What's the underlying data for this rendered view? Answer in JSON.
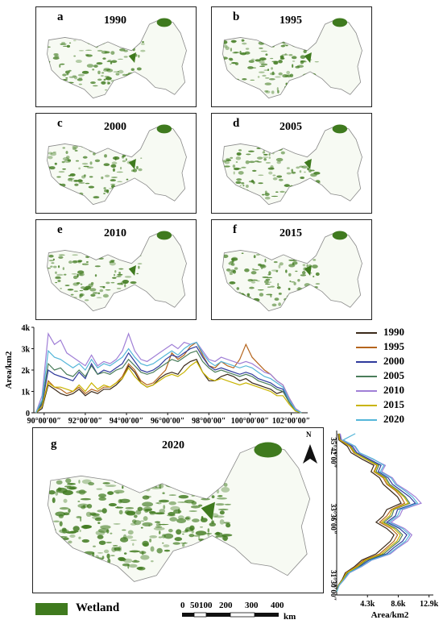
{
  "panels": [
    {
      "letter": "a",
      "year": "1990"
    },
    {
      "letter": "b",
      "year": "1995"
    },
    {
      "letter": "c",
      "year": "2000"
    },
    {
      "letter": "d",
      "year": "2005"
    },
    {
      "letter": "e",
      "year": "2010"
    },
    {
      "letter": "f",
      "year": "2015"
    },
    {
      "letter": "g",
      "year": "2020"
    }
  ],
  "north_label": "N",
  "wetland_legend": {
    "label": "Wetland",
    "color": "#3f7a1e"
  },
  "scale_bar": {
    "ticks": [
      "0",
      "50100",
      "200",
      "300",
      "400"
    ],
    "unit": "km"
  },
  "colors": {
    "wetland": "#3f7a1e",
    "region_fill": "#f7faf3",
    "outline": "#8a8a8a"
  },
  "chart_data": [
    {
      "type": "line",
      "orientation": "horizontal",
      "ylabel": "Area/km2",
      "ytick_labels": [
        "0",
        "1k",
        "2k",
        "3k",
        "4k"
      ],
      "ylim": [
        0,
        4000
      ],
      "xlim": [
        89.5,
        102.8
      ],
      "xtick_labels": [
        "90°00′00″",
        "92°00′00″",
        "94°00′00″",
        "96°00′00″",
        "98°00′00″",
        "100°00′00″",
        "102°00′00″"
      ],
      "xtick_values": [
        90,
        92,
        94,
        96,
        98,
        100,
        102
      ],
      "x": [
        89.6,
        89.9,
        90.2,
        90.5,
        90.8,
        91.1,
        91.4,
        91.7,
        92.0,
        92.3,
        92.6,
        92.9,
        93.2,
        93.5,
        93.8,
        94.1,
        94.4,
        94.7,
        95.0,
        95.3,
        95.6,
        95.9,
        96.2,
        96.5,
        96.8,
        97.1,
        97.4,
        97.7,
        98.0,
        98.3,
        98.6,
        98.9,
        99.2,
        99.5,
        99.8,
        100.1,
        100.4,
        100.7,
        101.0,
        101.3,
        101.6,
        101.9,
        102.2,
        102.5
      ],
      "series": [
        {
          "name": "1990",
          "color": "#3b2a1a",
          "values": [
            0,
            200,
            1300,
            1100,
            900,
            800,
            900,
            1100,
            800,
            1000,
            900,
            1100,
            1100,
            1300,
            1600,
            2200,
            1900,
            1400,
            1200,
            1300,
            1600,
            1800,
            1900,
            1800,
            2200,
            2400,
            2500,
            1900,
            1500,
            1500,
            1700,
            1800,
            1700,
            1500,
            1600,
            1400,
            1300,
            1200,
            1100,
            900,
            1000,
            500,
            100,
            0
          ]
        },
        {
          "name": "1995",
          "color": "#b5651d",
          "values": [
            0,
            300,
            1500,
            1200,
            1100,
            900,
            1000,
            1200,
            900,
            1100,
            1000,
            1200,
            1200,
            1400,
            1700,
            2300,
            2000,
            1500,
            1300,
            1400,
            1700,
            2000,
            2800,
            2500,
            2700,
            3100,
            3300,
            2700,
            2200,
            2100,
            2400,
            2200,
            2100,
            2500,
            3200,
            2600,
            2300,
            2000,
            1800,
            1500,
            1300,
            700,
            200,
            0
          ]
        },
        {
          "name": "2000",
          "color": "#2f3a9c",
          "values": [
            0,
            400,
            2000,
            1800,
            1700,
            1600,
            1500,
            1900,
            1600,
            2300,
            1800,
            2000,
            1900,
            2100,
            2300,
            2800,
            2400,
            2000,
            1900,
            2000,
            2200,
            2500,
            2700,
            2600,
            2800,
            3000,
            3100,
            2600,
            2200,
            2000,
            2100,
            2000,
            1900,
            1800,
            1900,
            1800,
            1600,
            1500,
            1400,
            1200,
            1100,
            600,
            150,
            0
          ]
        },
        {
          "name": "2005",
          "color": "#4a7d5a",
          "values": [
            0,
            500,
            2300,
            2000,
            2100,
            1800,
            1700,
            2000,
            1700,
            2200,
            1800,
            1900,
            1800,
            2000,
            2100,
            2500,
            2200,
            1900,
            1800,
            1900,
            2100,
            2300,
            2500,
            2400,
            2600,
            2800,
            2900,
            2400,
            2100,
            1900,
            2000,
            1900,
            1800,
            1700,
            1800,
            1700,
            1500,
            1400,
            1300,
            1100,
            1000,
            500,
            100,
            0
          ]
        },
        {
          "name": "2010",
          "color": "#a07fd6",
          "values": [
            0,
            800,
            3700,
            3200,
            3400,
            2800,
            2600,
            2400,
            2200,
            2700,
            2200,
            2400,
            2300,
            2500,
            2900,
            3700,
            2900,
            2500,
            2400,
            2600,
            2800,
            3000,
            3200,
            3000,
            3300,
            3200,
            3300,
            2900,
            2500,
            2400,
            2600,
            2500,
            2400,
            2300,
            2400,
            2300,
            2100,
            1900,
            1800,
            1500,
            1300,
            700,
            200,
            0
          ]
        },
        {
          "name": "2015",
          "color": "#c9b400",
          "values": [
            0,
            300,
            1400,
            1200,
            1200,
            1100,
            1000,
            1300,
            1000,
            1400,
            1100,
            1300,
            1200,
            1400,
            1600,
            2100,
            1700,
            1400,
            1200,
            1300,
            1500,
            1700,
            1800,
            1700,
            1900,
            2200,
            2400,
            1900,
            1600,
            1500,
            1600,
            1500,
            1400,
            1300,
            1400,
            1300,
            1200,
            1100,
            1000,
            800,
            800,
            400,
            80,
            0
          ]
        },
        {
          "name": "2020",
          "color": "#55b6d9",
          "values": [
            0,
            600,
            2900,
            2600,
            2500,
            2300,
            2100,
            2300,
            2000,
            2500,
            2100,
            2300,
            2200,
            2400,
            2600,
            3000,
            2600,
            2300,
            2200,
            2300,
            2500,
            2700,
            2900,
            2700,
            3000,
            3200,
            3300,
            2800,
            2400,
            2200,
            2400,
            2300,
            2200,
            2100,
            2200,
            2100,
            1900,
            1700,
            1600,
            1400,
            1200,
            600,
            150,
            0
          ]
        }
      ]
    },
    {
      "type": "line",
      "orientation": "vertical",
      "xlabel": "Area/km2",
      "xtick_labels": [
        "4.3k",
        "8.6k",
        "12.9k"
      ],
      "xtick_values": [
        4300,
        8600,
        12900
      ],
      "xlim": [
        0,
        13500
      ],
      "ylim": [
        31.2,
        36.4
      ],
      "ytick_labels": [
        "35°42′00″",
        "33°36′00″",
        "31°30′00″"
      ],
      "ytick_values": [
        35.7,
        33.6,
        31.5
      ],
      "y": [
        36.3,
        36.1,
        35.9,
        35.7,
        35.5,
        35.3,
        35.1,
        34.9,
        34.7,
        34.5,
        34.3,
        34.1,
        33.9,
        33.7,
        33.5,
        33.3,
        33.1,
        32.9,
        32.7,
        32.5,
        32.3,
        32.1,
        31.9,
        31.7,
        31.5,
        31.3
      ],
      "series": [
        {
          "name": "1990",
          "color": "#3b2a1a",
          "values": [
            200,
            300,
            1500,
            2000,
            3500,
            5200,
            4800,
            6000,
            6500,
            7500,
            8500,
            9000,
            7000,
            6500,
            5500,
            7000,
            8000,
            7500,
            6500,
            5500,
            3500,
            2500,
            1200,
            800,
            200,
            0
          ]
        },
        {
          "name": "1995",
          "color": "#b5651d",
          "values": [
            300,
            400,
            1800,
            2400,
            4000,
            5600,
            5200,
            6500,
            7000,
            8200,
            9000,
            9500,
            7600,
            7000,
            6000,
            7600,
            8500,
            8000,
            7000,
            6000,
            3800,
            2700,
            1300,
            900,
            250,
            0
          ]
        },
        {
          "name": "2000",
          "color": "#2f3a9c",
          "values": [
            400,
            600,
            2200,
            2800,
            4500,
            6200,
            5800,
            7200,
            7800,
            9000,
            10200,
            11000,
            8500,
            8200,
            7000,
            8800,
            9800,
            9200,
            8000,
            7000,
            4500,
            3200,
            1600,
            1000,
            300,
            0
          ]
        },
        {
          "name": "2005",
          "color": "#4a7d5a",
          "values": [
            350,
            500,
            2000,
            2600,
            4200,
            5900,
            5500,
            6900,
            7400,
            8600,
            9600,
            10200,
            8000,
            7700,
            6600,
            8300,
            9200,
            8700,
            7600,
            6600,
            4200,
            3000,
            1500,
            950,
            280,
            0
          ]
        },
        {
          "name": "2010",
          "color": "#a07fd6",
          "values": [
            500,
            700,
            2500,
            3100,
            5000,
            6800,
            6300,
            7800,
            8400,
            9800,
            11000,
            11800,
            9200,
            8800,
            7600,
            9500,
            10500,
            9900,
            8600,
            7500,
            4900,
            3500,
            1800,
            1100,
            350,
            0
          ]
        },
        {
          "name": "2015",
          "color": "#c9b400",
          "values": [
            300,
            450,
            1900,
            2500,
            4000,
            5700,
            5300,
            6700,
            7200,
            8400,
            9400,
            10000,
            7800,
            7400,
            6300,
            8000,
            8900,
            8400,
            7300,
            6300,
            4000,
            2900,
            1400,
            900,
            260,
            0
          ]
        },
        {
          "name": "2020",
          "color": "#55b6d9",
          "values": [
            2600,
            900,
            2600,
            3200,
            5100,
            6600,
            6100,
            7600,
            8200,
            9500,
            10600,
            11300,
            8900,
            8500,
            7300,
            9200,
            10200,
            9600,
            8400,
            7300,
            4800,
            3400,
            1700,
            1050,
            330,
            0
          ]
        }
      ]
    }
  ]
}
